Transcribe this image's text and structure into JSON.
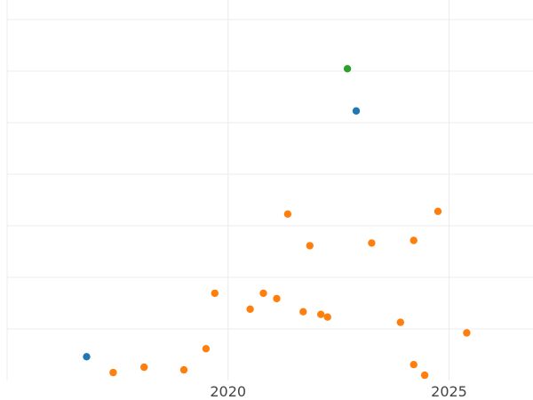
{
  "chart_data": {
    "type": "scatter",
    "title": "",
    "xlabel": "",
    "ylabel": "",
    "x_ticks": [
      2020,
      2025
    ],
    "xlim": [
      2015,
      2026.9
    ],
    "ylim": [
      0,
      7.2
    ],
    "grid": true,
    "legend": "none",
    "series": [
      {
        "color": "#1f77b4",
        "points": [
          {
            "x": 2016.8,
            "y": 0.45
          },
          {
            "x": 2022.9,
            "y": 5.1
          }
        ]
      },
      {
        "color": "#ff7f0e",
        "points": [
          {
            "x": 2017.4,
            "y": 0.15
          },
          {
            "x": 2018.1,
            "y": 0.25
          },
          {
            "x": 2019.0,
            "y": 0.2
          },
          {
            "x": 2019.5,
            "y": 0.6
          },
          {
            "x": 2019.7,
            "y": 1.65
          },
          {
            "x": 2020.5,
            "y": 1.35
          },
          {
            "x": 2020.8,
            "y": 1.65
          },
          {
            "x": 2021.1,
            "y": 1.55
          },
          {
            "x": 2021.35,
            "y": 3.15
          },
          {
            "x": 2021.7,
            "y": 1.3
          },
          {
            "x": 2021.85,
            "y": 2.55
          },
          {
            "x": 2022.1,
            "y": 1.25
          },
          {
            "x": 2022.25,
            "y": 1.2
          },
          {
            "x": 2023.25,
            "y": 2.6
          },
          {
            "x": 2023.9,
            "y": 1.1
          },
          {
            "x": 2024.2,
            "y": 2.65
          },
          {
            "x": 2024.2,
            "y": 0.3
          },
          {
            "x": 2024.45,
            "y": 0.1
          },
          {
            "x": 2024.75,
            "y": 3.2
          },
          {
            "x": 2025.4,
            "y": 0.9
          }
        ]
      },
      {
        "color": "#2ca02c",
        "points": [
          {
            "x": 2022.7,
            "y": 5.9
          }
        ]
      }
    ]
  }
}
